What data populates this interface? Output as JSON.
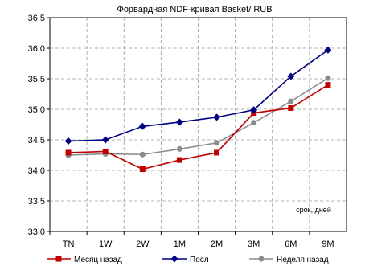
{
  "chart_data": {
    "type": "line",
    "title": "Форвардная NDF-кривая Basket/ RUB",
    "annotation": "срок, дней",
    "categories": [
      "TN",
      "1W",
      "2W",
      "1M",
      "2M",
      "3M",
      "6M",
      "9M"
    ],
    "y_ticks": [
      "33.0",
      "33.5",
      "34.0",
      "34.5",
      "35.0",
      "35.5",
      "36.0",
      "36.5"
    ],
    "ylim": [
      33.0,
      36.5
    ],
    "grid": true,
    "legend_position": "bottom",
    "series": [
      {
        "name": "Месяц назад",
        "color": "#c00000",
        "marker": "square",
        "values": [
          34.29,
          34.31,
          34.02,
          34.17,
          34.29,
          34.94,
          35.02,
          35.4
        ]
      },
      {
        "name": "Посл",
        "color": "#000080",
        "marker": "diamond",
        "values": [
          34.48,
          34.5,
          34.72,
          34.79,
          34.87,
          34.99,
          35.54,
          35.97
        ]
      },
      {
        "name": "Неделя назад",
        "color": "#8c8c8c",
        "marker": "circle",
        "values": [
          34.25,
          34.27,
          34.26,
          34.35,
          34.45,
          34.78,
          35.13,
          35.51
        ]
      }
    ]
  }
}
